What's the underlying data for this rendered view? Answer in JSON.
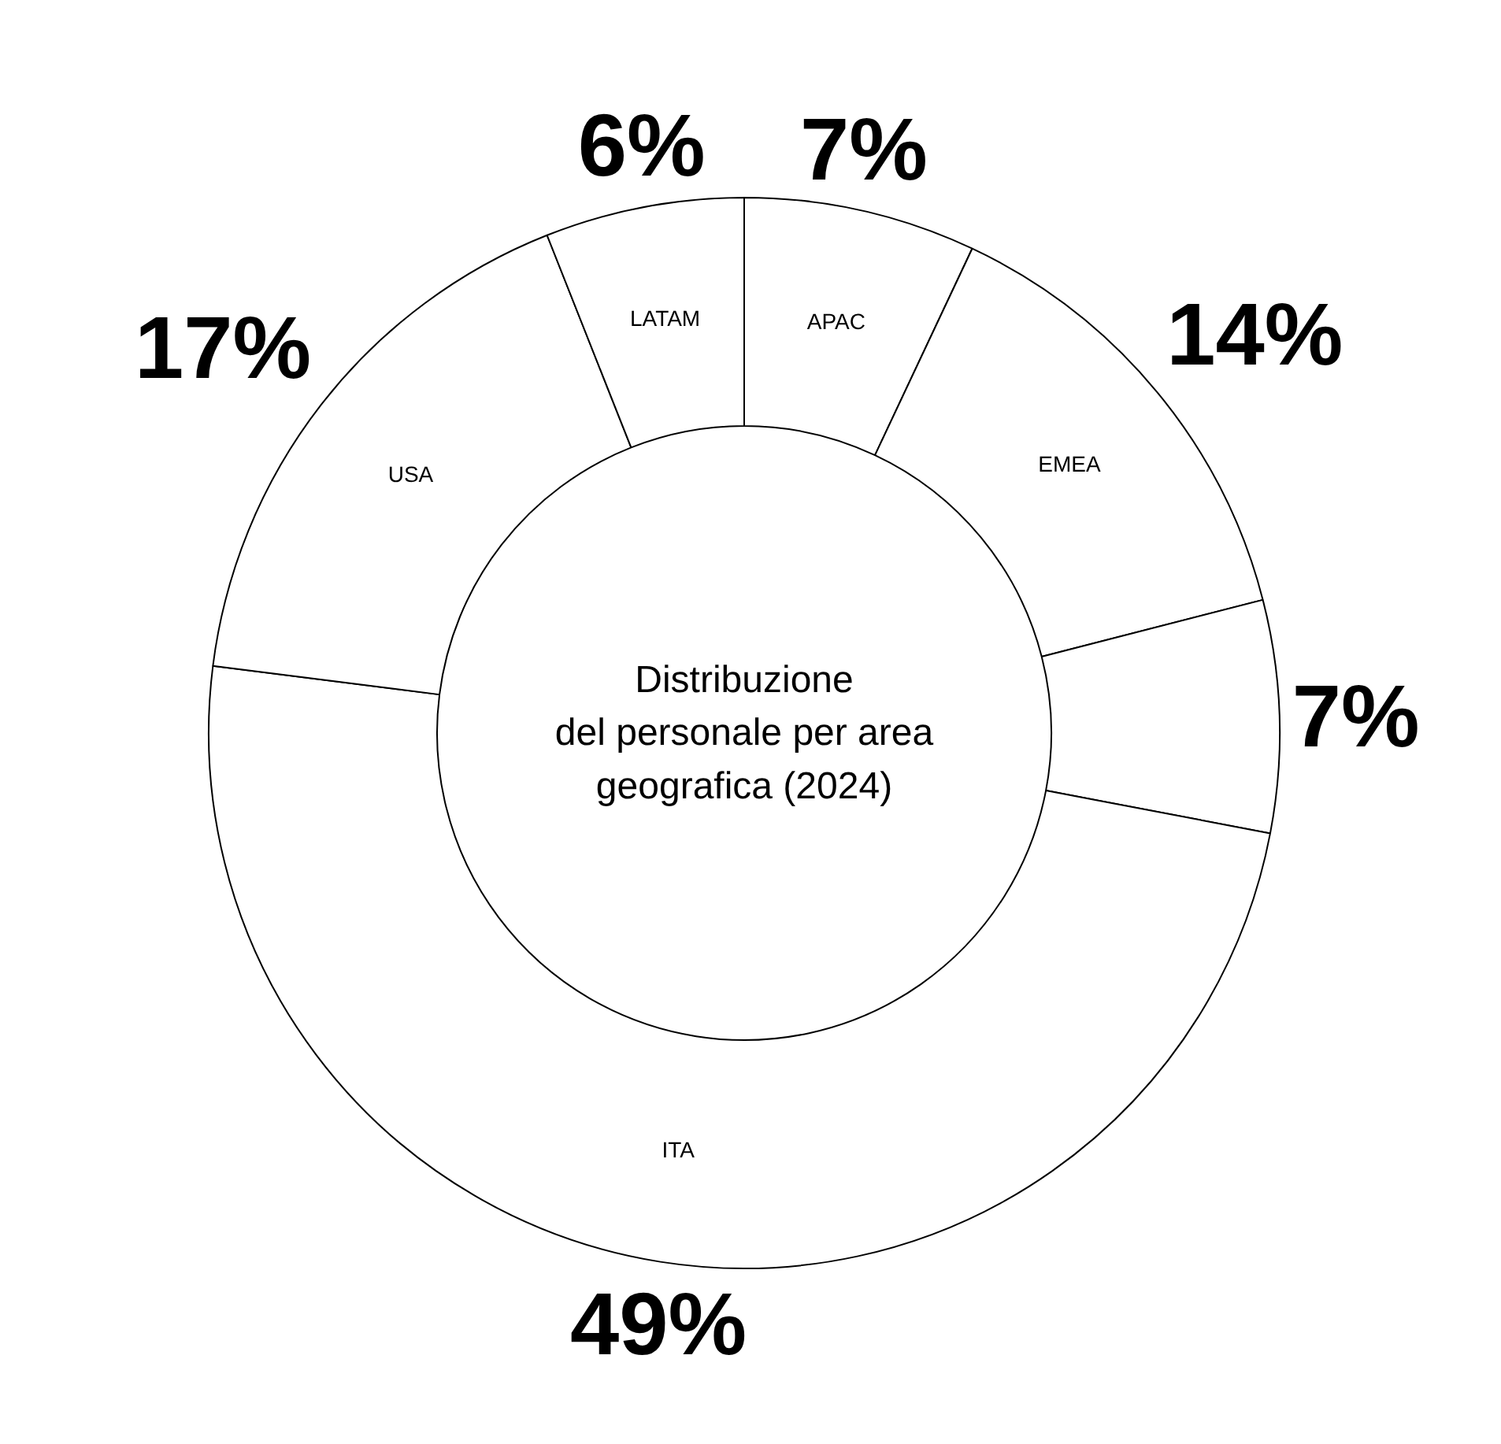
{
  "chart_data": {
    "type": "donut",
    "title": "Distribuzione\ndel personale per area\ngeografica (2024)",
    "categories": [
      "APAC",
      "EMEA",
      null,
      "ITA",
      "USA",
      "LATAM"
    ],
    "values": [
      7,
      14,
      7,
      49,
      17,
      6
    ],
    "value_labels": [
      "7%",
      "14%",
      "7%",
      "49%",
      "17%",
      "6%"
    ],
    "colors": [
      "#ffffff",
      "#ffffff",
      "#ffffff",
      "#ffffff",
      "#ffffff",
      "#ffffff"
    ]
  }
}
